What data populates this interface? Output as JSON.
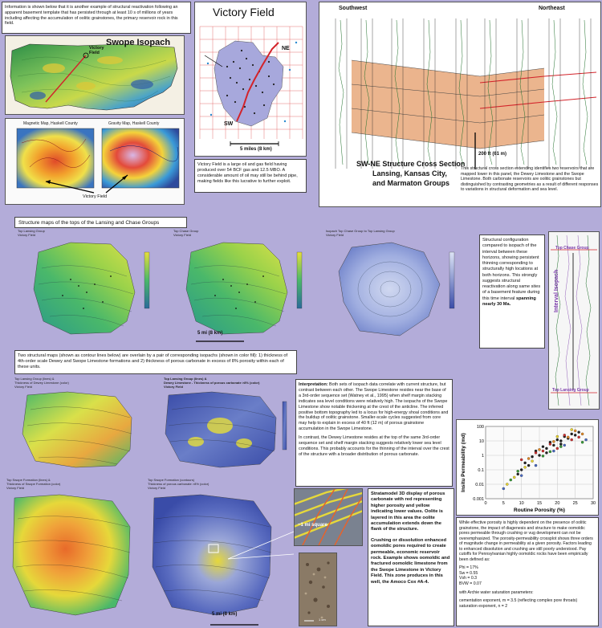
{
  "intro_text": "Information is shown below that it is another example of structural reactivation following an apparent basement template that has persisted through at least 10 s of millions of years including affecting the accumulation of oolitic grainstones, the primary reservoir rock in this field.",
  "swope": {
    "title": "Swope Isopach",
    "field_label": "Victory\nField"
  },
  "magnetic_title": "Magnetic Map, Haskell County",
  "gravity_title": "Gravity Map, Haskell County",
  "victory_field_pointer": "Victory Field",
  "victory": {
    "title": "Victory Field",
    "ne": "NE",
    "sw": "SW",
    "scale": "5 miles (8 km)",
    "description": "Victory Field is a large oil and gas field having produced over 54 BCF gas and 12.5 MBO. A considerable amount of oil may still be behind pipe, making fields like this lucrative to further exploit."
  },
  "cross_section": {
    "southwest": "Southwest",
    "northeast": "Northeast",
    "scale": "200 ft (61 m)",
    "title_line1": "SW-NE Structure Cross Section",
    "title_line2": "Lansing, Kansas City,",
    "title_line3": "and Marmaton Groups",
    "description": "This structural cross section extending identifies two reservoirs that are mapped lower in this panel, the Dewey Limestone and the Swope Limestone. Both carbonate reservoirs are oolitic grainstones but distinguished by contrasting geometries as a result of different responses to variations in structural deformation and sea level."
  },
  "structure_maps_title": "Structure maps of the tops of the Lansing and Chase Groups",
  "map_top_lansing": "Top Lansing Group\nVictory Field",
  "map_top_chase": "Top Chase Group\nVictory Field",
  "map_isopach": "Isopach Top Chase Group to Top Lansing Group\nVictory Field",
  "map_scale": "5 mi (8 km)",
  "structural_config": {
    "text_start": "Structural configuration compared to isopach of the interval between these horizons, showing persistent thinning corresponding to structurally high locations at both horizons. This strongly suggests structural reactivation along same sites of a basement feature during this time interval ",
    "text_bold": "spanning nearly 30 Ma."
  },
  "log_labels": {
    "top_chase": "Top Chase Group",
    "interval_isopach": "Interval Isopach",
    "top_lansing": "Top Lansing Group"
  },
  "two_structural_text": "Two structural maps (shown as contour lines below) are overlain by a pair of corresponding isopachs (shown in color fill): 1) thickness of 4th-order scale Dewey and Swope Limestone formations and 2) thickness of porous carbonate in excess of 8% porosity within each of these units.",
  "map_dewey_thick": "Top Lansing Group (lines) &\nThickness of Dewey Limestone (color)\nVictory Field",
  "map_dewey_porous": "Top Lansing Group (lines) &\nDewey Limestone - Thickness of porous carbonate >8% (color)\nVictory Field",
  "map_swope_thick": "Top Swope Formation (lines) &\nThickness of Swope Formation (color)\nVictory Field",
  "map_swope_porous": "Top Swope Formation (contours)\nThickness of porous carbonate >8% (color)\nVictory Field",
  "interpretation": {
    "heading": "Interpretation:",
    "p1": " Both sets of isopach data correlate with current structure, but contrast between each other. The Swope Limestone resides near the base of a 3rd-order sequence set (Watney et al., 1995) when shelf margin stacking indicates sea level conditions were relatively high. The isopachs of the Swope Limestone show notable thickening at the crest of the anticline. The inferred positive bottom topography led to a locus for high-energy shoal conditions and the buildup of oolitic grainstone. Smaller-scale cycles suggested from core may help to explain in excess of 40 ft (12 m) of porous grainstone accumulation in the Swope Limestone.",
    "p2": "In contrast, the Dewey Limestone resides at the top of the same 3rd-order sequence set and shelf margin stacking suggests relatively lower sea level conditions. This probably accounts for the thinning of the interval over the crest of the structure with a broader distribution of porous carbonate."
  },
  "stratamodel_text": "Stratamodel 3D display of porous carbonate with red representing higher porosity and yellow indicating lower values. Oolite is layered in this area the oolite accumulation extends down the flank of the structure.",
  "crushing_text": "Crushing or dissolution enhanced oomoldic pores required to create permeable, economic reservoir rock. Example shows oomoldic and fractured oomoldic limestone from the Swope Limestone in Victory Field. This zone produces in this well, the Amoco Cox #A-4.",
  "one_mile_square": "~1 mi square",
  "core_scale": "1 cm",
  "bottom_scale": "5 mi (8 km)",
  "porosity_chart": {
    "chart_data": {
      "type": "scatter",
      "xlabel": "Routine Porosity (%)",
      "ylabel": "Insitu Permeability (md)",
      "xlim": [
        0,
        30
      ],
      "ylim": [
        0.001,
        100
      ],
      "y_scale": "log",
      "x_ticks": [
        "0",
        "5",
        "10",
        "15",
        "20",
        "25",
        "30"
      ],
      "y_ticks": [
        "100",
        "10",
        "1",
        "0.1",
        "0.01",
        "0.001"
      ],
      "grid": true,
      "series": [
        {
          "color": "#222222",
          "points": [
            [
              9,
              0.05
            ],
            [
              11,
              0.3
            ],
            [
              13,
              0.8
            ],
            [
              14,
              2
            ],
            [
              15,
              1
            ],
            [
              16,
              4
            ],
            [
              17,
              3
            ],
            [
              18,
              8
            ],
            [
              19,
              5
            ],
            [
              20,
              12
            ],
            [
              21,
              10
            ],
            [
              22,
              20
            ],
            [
              23,
              15
            ],
            [
              24,
              30
            ],
            [
              25,
              25
            ],
            [
              26,
              40
            ],
            [
              12,
              0.2
            ],
            [
              10,
              0.1
            ],
            [
              17,
              1.5
            ],
            [
              21,
              6
            ]
          ]
        },
        {
          "color": "#cc3333",
          "points": [
            [
              10,
              0.5
            ],
            [
              14,
              1.5
            ],
            [
              18,
              6
            ],
            [
              22,
              25
            ],
            [
              24,
              12
            ],
            [
              26,
              18
            ],
            [
              20,
              3
            ],
            [
              16,
              2
            ]
          ]
        },
        {
          "color": "#e08a2a",
          "points": [
            [
              12,
              0.6
            ],
            [
              15,
              2.5
            ],
            [
              19,
              9
            ],
            [
              23,
              18
            ],
            [
              25,
              50
            ],
            [
              27,
              30
            ]
          ]
        },
        {
          "color": "#e6d230",
          "points": [
            [
              6,
              0.01
            ],
            [
              8,
              0.03
            ],
            [
              11,
              0.15
            ],
            [
              13,
              0.4
            ],
            [
              20,
              20
            ],
            [
              24,
              60
            ]
          ]
        },
        {
          "color": "#3a9a3a",
          "points": [
            [
              7,
              0.02
            ],
            [
              9,
              0.08
            ],
            [
              16,
              0.9
            ],
            [
              18,
              1.8
            ],
            [
              21,
              4
            ],
            [
              27,
              8
            ]
          ]
        },
        {
          "color": "#4a6ac0",
          "points": [
            [
              5,
              0.005
            ],
            [
              10,
              0.04
            ],
            [
              14,
              0.2
            ],
            [
              19,
              2
            ],
            [
              22,
              5
            ],
            [
              28,
              12
            ]
          ]
        }
      ]
    }
  },
  "porosity_text": "While effective porosity is highly dependent on the presence of oolitic grainstone, the impact of diagenesis and structure to make oomoldic pores permeable through crushing or vug development can not be overemphasized. The porosity-permeability crossplot shows three orders of magnitude change in permeability at a given porosity. Factors leading to enhanced dissolution and crushing are still poorly understood. Pay cutoffs for Pennsylvanian highly oomoldic rocks have been empirically been defined as:",
  "cutoffs": [
    "Phi = 17%",
    "Sw = 0.55",
    "Vsh = 0.3",
    "BVW = 0.07"
  ],
  "archie_text": "with Archie water saturation parameters:",
  "archie_params": [
    "cementation exponent, m = 3.5 (reflecting complex pore throats)",
    "saturation exponent, n = 2"
  ],
  "colors": {
    "background": "#b3acd9",
    "map_green": "#5fb56a",
    "map_yellow": "#e6de3a",
    "map_blue": "#3a4ca8",
    "cross_section_orange": "#e8a87a"
  }
}
